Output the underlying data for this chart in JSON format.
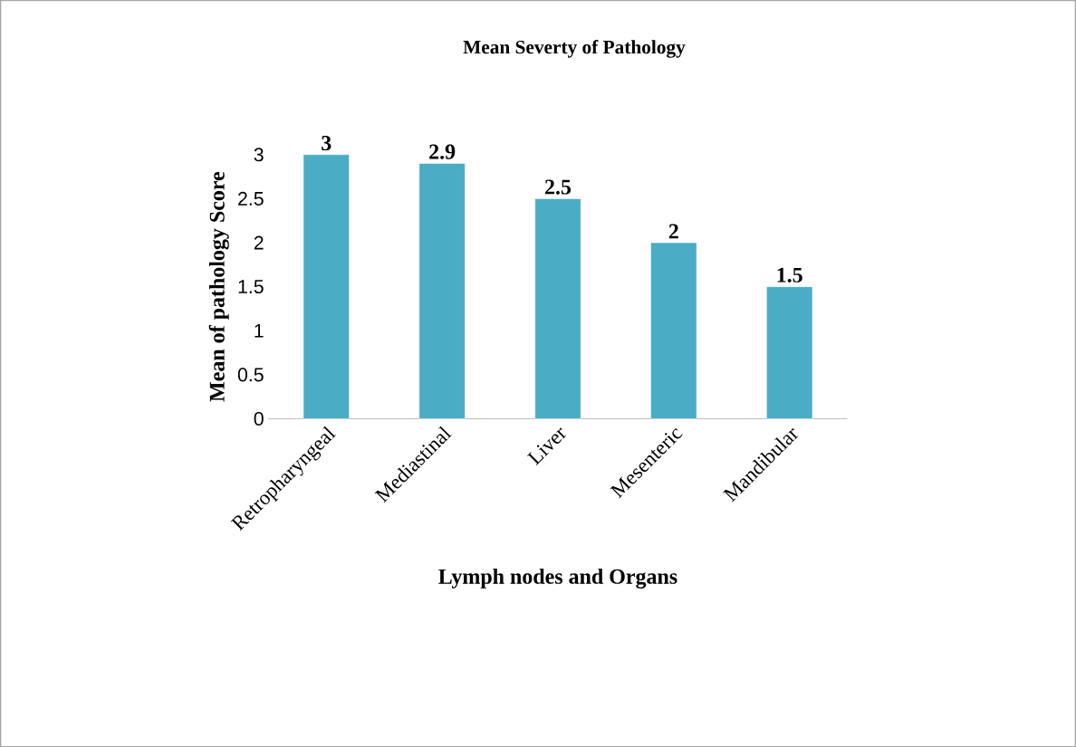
{
  "chart_data": {
    "type": "bar",
    "title": "Mean Severty of Pathology",
    "xlabel": "Lymph nodes and Organs",
    "ylabel": "Mean of pathology Score",
    "categories": [
      "Retropharyngeal",
      "Mediastinal",
      "Liver",
      "Mesenteric",
      "Mandibular"
    ],
    "values": [
      3,
      2.9,
      2.5,
      2,
      1.5
    ],
    "color": "#4bacc6",
    "ylim": [
      0,
      3
    ],
    "yticks": [
      0,
      0.5,
      1,
      1.5,
      2,
      2.5,
      3
    ],
    "data_labels": true
  }
}
